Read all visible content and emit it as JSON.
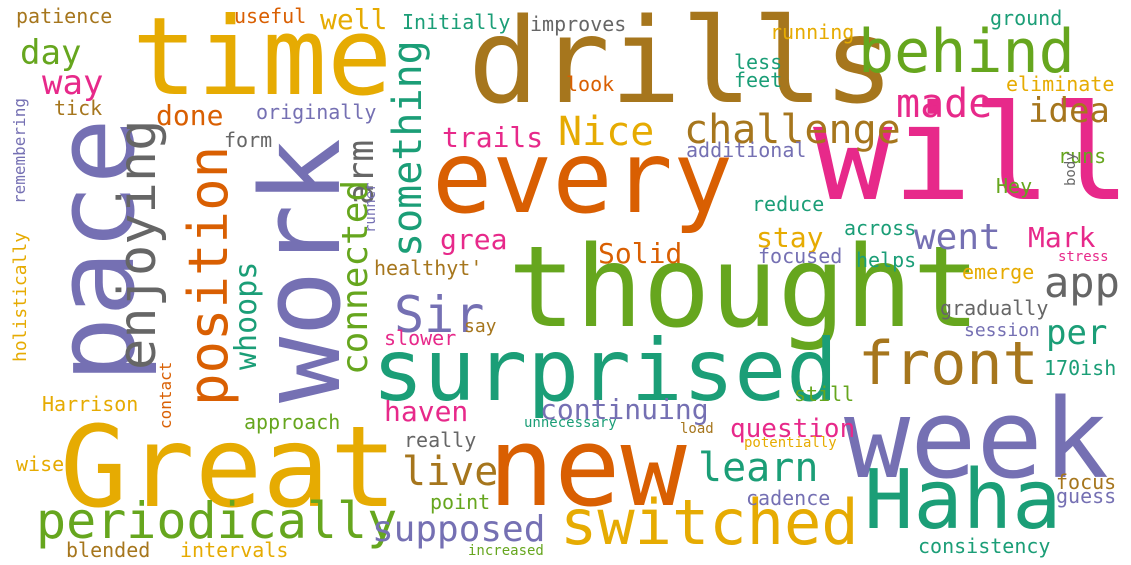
{
  "palette": [
    "#1b9e77",
    "#d95f02",
    "#7570b3",
    "#e7298a",
    "#66a61e",
    "#e6ab02",
    "#a6761d",
    "#666666"
  ],
  "words": [
    {
      "text": "drills",
      "color": "#a6761d"
    },
    {
      "text": "time",
      "color": "#e6ab02"
    },
    {
      "text": "behind",
      "color": "#66a61e"
    },
    {
      "text": "every",
      "color": "#d95f02"
    },
    {
      "text": "will",
      "color": "#e7298a"
    },
    {
      "text": "pace",
      "color": "#7570b3"
    },
    {
      "text": "work",
      "color": "#7570b3"
    },
    {
      "text": "thought",
      "color": "#66a61e"
    },
    {
      "text": "surprised",
      "color": "#1b9e77"
    },
    {
      "text": "front",
      "color": "#a6761d"
    },
    {
      "text": "week",
      "color": "#7570b3"
    },
    {
      "text": "Great",
      "color": "#e6ab02"
    },
    {
      "text": "new",
      "color": "#d95f02"
    },
    {
      "text": "Haha",
      "color": "#1b9e77"
    },
    {
      "text": "switched",
      "color": "#e6ab02"
    },
    {
      "text": "periodically",
      "color": "#66a61e"
    },
    {
      "text": "position",
      "color": "#d95f02"
    },
    {
      "text": "enjoying",
      "color": "#666666"
    },
    {
      "text": "something",
      "color": "#1b9e77"
    },
    {
      "text": "made",
      "color": "#e7298a"
    },
    {
      "text": "challenge",
      "color": "#a6761d"
    },
    {
      "text": "Nice",
      "color": "#e6ab02"
    },
    {
      "text": "idea",
      "color": "#a6761d"
    },
    {
      "text": "app",
      "color": "#666666"
    },
    {
      "text": "went",
      "color": "#7570b3"
    },
    {
      "text": "per",
      "color": "#1b9e77"
    },
    {
      "text": "Mark",
      "color": "#e7298a"
    },
    {
      "text": "Sir",
      "color": "#7570b3"
    },
    {
      "text": "arm",
      "color": "#666666"
    },
    {
      "text": "connected",
      "color": "#66a61e"
    },
    {
      "text": "whoops",
      "color": "#1b9e77"
    },
    {
      "text": "continuing",
      "color": "#7570b3"
    },
    {
      "text": "learn",
      "color": "#1b9e77"
    },
    {
      "text": "live",
      "color": "#a6761d"
    },
    {
      "text": "supposed",
      "color": "#7570b3"
    },
    {
      "text": "trails",
      "color": "#e7298a"
    },
    {
      "text": "grea",
      "color": "#e7298a"
    },
    {
      "text": "Solid",
      "color": "#d95f02"
    },
    {
      "text": "stay",
      "color": "#e6ab02"
    },
    {
      "text": "haven",
      "color": "#e7298a"
    },
    {
      "text": "question",
      "color": "#e7298a"
    },
    {
      "text": "day",
      "color": "#66a61e"
    },
    {
      "text": "way",
      "color": "#e7298a"
    },
    {
      "text": "done",
      "color": "#d95f02"
    },
    {
      "text": "well",
      "color": "#e6ab02"
    },
    {
      "text": "patience",
      "color": "#a6761d"
    },
    {
      "text": "useful",
      "color": "#d95f02"
    },
    {
      "text": "Initially",
      "color": "#1b9e77"
    },
    {
      "text": "improves",
      "color": "#666666"
    },
    {
      "text": "running",
      "color": "#e6ab02"
    },
    {
      "text": "ground",
      "color": "#1b9e77"
    },
    {
      "text": "less",
      "color": "#1b9e77"
    },
    {
      "text": "feet",
      "color": "#1b9e77"
    },
    {
      "text": "look",
      "color": "#d95f02"
    },
    {
      "text": "eliminate",
      "color": "#e6ab02"
    },
    {
      "text": "originally",
      "color": "#7570b3"
    },
    {
      "text": "tick",
      "color": "#a6761d"
    },
    {
      "text": "form",
      "color": "#666666"
    },
    {
      "text": "remembering",
      "color": "#7570b3"
    },
    {
      "text": "additional",
      "color": "#7570b3"
    },
    {
      "text": "runs",
      "color": "#66a61e"
    },
    {
      "text": "body",
      "color": "#666666"
    },
    {
      "text": "Hey",
      "color": "#66a61e"
    },
    {
      "text": "reduce",
      "color": "#1b9e77"
    },
    {
      "text": "across",
      "color": "#1b9e77"
    },
    {
      "text": "runner",
      "color": "#7570b3"
    },
    {
      "text": "healthyt'",
      "color": "#a6761d"
    },
    {
      "text": "focused",
      "color": "#7570b3"
    },
    {
      "text": "helps",
      "color": "#1b9e77"
    },
    {
      "text": "stress",
      "color": "#e7298a"
    },
    {
      "text": "emerge",
      "color": "#e6ab02"
    },
    {
      "text": "gradually",
      "color": "#666666"
    },
    {
      "text": "session",
      "color": "#7570b3"
    },
    {
      "text": "holistically",
      "color": "#e6ab02"
    },
    {
      "text": "say",
      "color": "#a6761d"
    },
    {
      "text": "slower",
      "color": "#e7298a"
    },
    {
      "text": "170ish",
      "color": "#1b9e77"
    },
    {
      "text": "still",
      "color": "#66a61e"
    },
    {
      "text": "Harrison",
      "color": "#e6ab02"
    },
    {
      "text": "contact",
      "color": "#d95f02"
    },
    {
      "text": "approach",
      "color": "#66a61e"
    },
    {
      "text": "really",
      "color": "#666666"
    },
    {
      "text": "unnecessary",
      "color": "#1b9e77"
    },
    {
      "text": "load",
      "color": "#a6761d"
    },
    {
      "text": "potentially",
      "color": "#e6ab02"
    },
    {
      "text": "focus",
      "color": "#a6761d"
    },
    {
      "text": "guess",
      "color": "#7570b3"
    },
    {
      "text": "wise",
      "color": "#e6ab02"
    },
    {
      "text": "point",
      "color": "#66a61e"
    },
    {
      "text": "cadence",
      "color": "#7570b3"
    },
    {
      "text": "blended",
      "color": "#a6761d"
    },
    {
      "text": "intervals",
      "color": "#e6ab02"
    },
    {
      "text": "increased",
      "color": "#66a61e"
    },
    {
      "text": "consistency",
      "color": "#1b9e77"
    }
  ]
}
